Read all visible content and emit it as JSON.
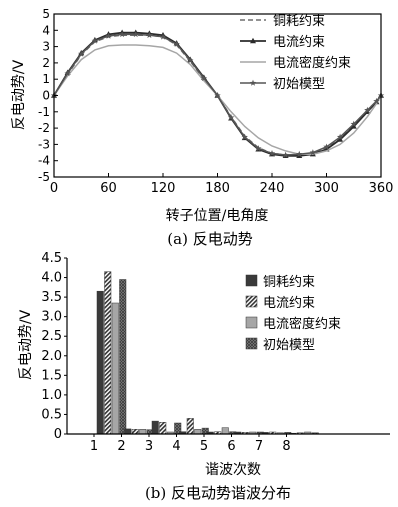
{
  "colors": {
    "copper": "#6e6e6e",
    "current": "#2b2b2b",
    "density": "#a6a6a6",
    "initial": "#555555",
    "axis": "#000000"
  },
  "chart_data": [
    {
      "type": "line",
      "caption": "(a) 反电动势",
      "xlabel": "转子位置/电角度",
      "ylabel": "反电动势/V",
      "xlim": [
        0,
        360
      ],
      "ylim": [
        -5,
        5
      ],
      "xticks": [
        0,
        60,
        120,
        180,
        240,
        300,
        360
      ],
      "yticks": [
        -5,
        -4,
        -3,
        -2,
        -1,
        0,
        1,
        2,
        3,
        4,
        5
      ],
      "grid": false,
      "legend_position": "top-right",
      "series": [
        {
          "name": "铜耗约束",
          "style": "dashed",
          "color": "#6e6e6e",
          "marker": "none",
          "x": [
            0,
            15,
            30,
            45,
            60,
            75,
            90,
            105,
            120,
            135,
            150,
            165,
            180,
            195,
            210,
            225,
            240,
            255,
            270,
            285,
            300,
            315,
            330,
            345,
            355,
            360
          ],
          "y": [
            0,
            1.3,
            2.5,
            3.3,
            3.6,
            3.7,
            3.7,
            3.7,
            3.6,
            3.1,
            2.1,
            1.0,
            0,
            -1.3,
            -2.5,
            -3.2,
            -3.55,
            -3.65,
            -3.65,
            -3.55,
            -3.2,
            -2.6,
            -1.8,
            -0.9,
            -0.35,
            0
          ]
        },
        {
          "name": "电流约束",
          "style": "solid",
          "color": "#2b2b2b",
          "marker": "triangle",
          "x": [
            0,
            15,
            30,
            45,
            60,
            75,
            90,
            105,
            120,
            135,
            150,
            165,
            180,
            195,
            210,
            225,
            240,
            255,
            270,
            285,
            300,
            315,
            330,
            345,
            355,
            360
          ],
          "y": [
            0,
            1.4,
            2.6,
            3.4,
            3.75,
            3.85,
            3.85,
            3.8,
            3.7,
            3.2,
            2.2,
            1.1,
            0,
            -1.4,
            -2.6,
            -3.3,
            -3.6,
            -3.7,
            -3.7,
            -3.6,
            -3.3,
            -2.7,
            -1.9,
            -1.0,
            -0.4,
            0
          ]
        },
        {
          "name": "电流密度约束",
          "style": "solid",
          "color": "#a6a6a6",
          "marker": "none",
          "x": [
            0,
            15,
            30,
            45,
            60,
            75,
            90,
            105,
            120,
            135,
            150,
            165,
            180,
            195,
            210,
            225,
            240,
            255,
            270,
            285,
            300,
            315,
            330,
            345,
            355,
            360
          ],
          "y": [
            0,
            1.2,
            2.2,
            2.8,
            3.05,
            3.1,
            3.1,
            3.05,
            2.95,
            2.6,
            1.9,
            0.9,
            0,
            -1.0,
            -1.9,
            -2.6,
            -3.1,
            -3.4,
            -3.6,
            -3.6,
            -3.4,
            -3.0,
            -2.3,
            -1.3,
            -0.5,
            0
          ]
        },
        {
          "name": "初始模型",
          "style": "solid",
          "color": "#555555",
          "marker": "star",
          "x": [
            0,
            15,
            30,
            45,
            60,
            75,
            90,
            105,
            120,
            135,
            150,
            165,
            180,
            195,
            210,
            225,
            240,
            255,
            270,
            285,
            300,
            315,
            330,
            345,
            355,
            360
          ],
          "y": [
            0,
            1.35,
            2.55,
            3.35,
            3.65,
            3.75,
            3.75,
            3.7,
            3.6,
            3.15,
            2.15,
            1.05,
            0,
            -1.35,
            -2.55,
            -3.25,
            -3.55,
            -3.65,
            -3.6,
            -3.5,
            -3.15,
            -2.55,
            -1.75,
            -0.9,
            -0.35,
            0
          ]
        }
      ]
    },
    {
      "type": "bar",
      "caption": "(b) 反电动势谐波分布",
      "xlabel": "谐波次数",
      "ylabel": "反电动势/V",
      "categories": [
        "1",
        "2",
        "3",
        "4",
        "5",
        "6",
        "7",
        "8"
      ],
      "ylim": [
        0,
        4.5
      ],
      "yticks": [
        0,
        0.5,
        1.0,
        1.5,
        2.0,
        2.5,
        3.0,
        3.5,
        4.0,
        4.5
      ],
      "ytick_labels": [
        "0",
        "0.5",
        "1.0",
        "1.5",
        "2.0",
        "2.5",
        "3.0",
        "3.5",
        "4.0",
        "4.5"
      ],
      "grid": false,
      "legend_position": "top-right",
      "series": [
        {
          "name": "铜耗约束",
          "color": "#3a3a3a",
          "pattern": "solid",
          "values": [
            3.65,
            0.13,
            0.33,
            0.06,
            0.05,
            0.05,
            0.04,
            0.02
          ]
        },
        {
          "name": "电流约束",
          "color": "#3a3a3a",
          "pattern": "hatch",
          "values": [
            4.15,
            0.12,
            0.3,
            0.4,
            0.06,
            0.04,
            0.05,
            0.03
          ]
        },
        {
          "name": "电流密度约束",
          "color": "#a6a6a6",
          "pattern": "solid",
          "values": [
            3.35,
            0.12,
            0.05,
            0.12,
            0.16,
            0.05,
            0.03,
            0.05
          ]
        },
        {
          "name": "初始模型",
          "color": "#6e6e6e",
          "pattern": "crosshatch",
          "values": [
            3.95,
            0.11,
            0.28,
            0.15,
            0.06,
            0.05,
            0.04,
            0.03
          ]
        }
      ]
    }
  ]
}
